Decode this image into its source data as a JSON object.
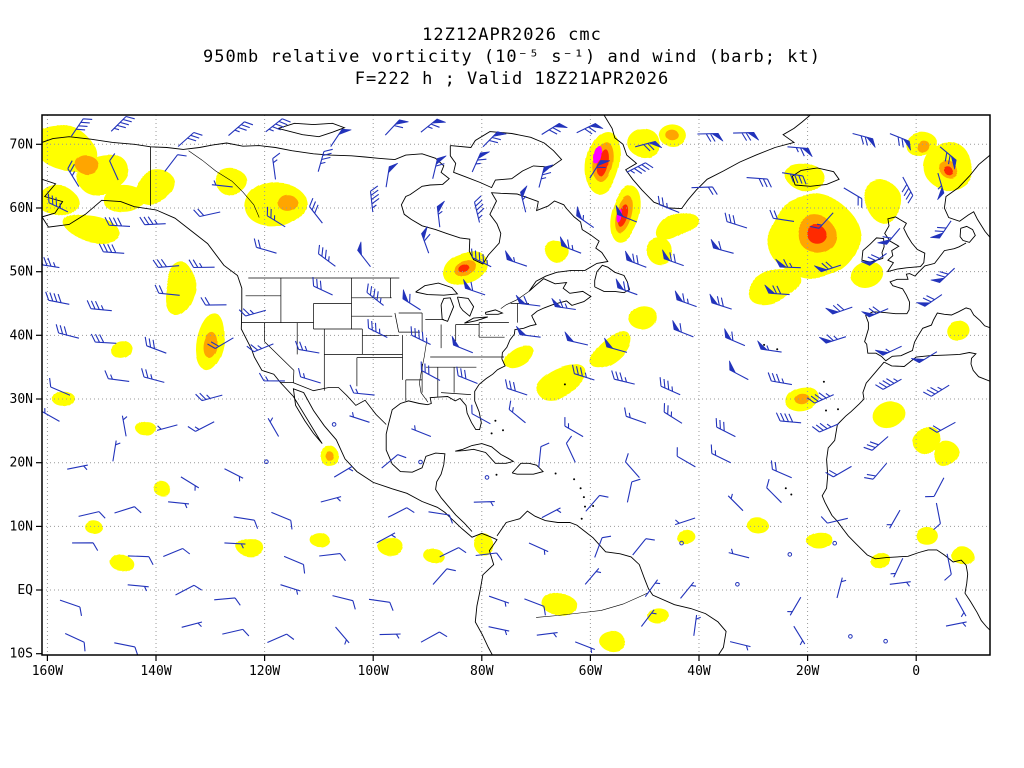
{
  "header": {
    "line1": "12Z12APR2026 cmc",
    "line2": "950mb relative vorticity (10⁻⁵ s⁻¹) and wind (barb; kt)",
    "line3": "F=222 h ; Valid 18Z21APR2026"
  },
  "chart_data": {
    "type": "heatmap",
    "title": "12Z12APR2026 cmc",
    "subtitle": "950mb relative vorticity (10⁻⁵ s⁻¹) and wind (barb; kt)",
    "forecast_line": "F=222 h ; Valid 18Z21APR2026",
    "model": "cmc",
    "run": "12Z12APR2026",
    "forecast_hour": "F=222 h",
    "valid": "18Z21APR2026",
    "level": "950mb",
    "variable": "relative vorticity (10⁻⁵ s⁻¹)",
    "wind_units": "kt",
    "lon_range": [
      -161,
      13.6
    ],
    "lat_range": [
      -10.2,
      74.6
    ],
    "grid_style": "dotted",
    "x_ticks": [
      {
        "label": "160W",
        "lon": -160
      },
      {
        "label": "140W",
        "lon": -140
      },
      {
        "label": "120W",
        "lon": -120
      },
      {
        "label": "100W",
        "lon": -100
      },
      {
        "label": "80W",
        "lon": -80
      },
      {
        "label": "60W",
        "lon": -60
      },
      {
        "label": "40W",
        "lon": -40
      },
      {
        "label": "20W",
        "lon": -20
      },
      {
        "label": "0",
        "lon": 0
      }
    ],
    "y_ticks": [
      {
        "label": "70N",
        "lat": 70
      },
      {
        "label": "60N",
        "lat": 60
      },
      {
        "label": "50N",
        "lat": 50
      },
      {
        "label": "40N",
        "lat": 40
      },
      {
        "label": "30N",
        "lat": 30
      },
      {
        "label": "20N",
        "lat": 20
      },
      {
        "label": "10N",
        "lat": 10
      },
      {
        "label": "EQ",
        "lat": 0
      },
      {
        "label": "10S",
        "lat": -10
      }
    ],
    "colors": {
      "barb": "#2233bb",
      "coast": "#000000",
      "grid": "#999999",
      "levels": [
        "#FFFF00",
        "#FFA500",
        "#FF2A00",
        "#FF00FF"
      ]
    },
    "cell_format": [
      "lon",
      "lat",
      "rx_deg",
      "ry_deg",
      "rotation_deg",
      "level"
    ],
    "vorticity_cells": [
      [
        -157,
        69.5,
        6,
        3.5,
        20,
        1
      ],
      [
        -150,
        65.5,
        5,
        3,
        -15,
        1
      ],
      [
        -158,
        61,
        3.5,
        2.5,
        0,
        1
      ],
      [
        -146,
        61.5,
        4,
        2.2,
        0,
        1
      ],
      [
        -152,
        57,
        5,
        2,
        10,
        1
      ],
      [
        -140,
        63,
        4,
        2.5,
        -20,
        1
      ],
      [
        -118,
        60.5,
        5.5,
        3.5,
        -10,
        1
      ],
      [
        -126,
        64,
        3,
        2,
        0,
        1
      ],
      [
        -136,
        47.5,
        2.5,
        4,
        15,
        1
      ],
      [
        -130,
        39,
        2.5,
        4.5,
        10,
        1
      ],
      [
        -146,
        37.5,
        2,
        1.5,
        0,
        1
      ],
      [
        -157,
        30,
        2,
        1.3,
        0,
        1
      ],
      [
        -142,
        25.5,
        1.8,
        1.2,
        0,
        1
      ],
      [
        -108,
        21,
        1.8,
        1.5,
        0,
        1
      ],
      [
        -123,
        7,
        2.5,
        1.4,
        0,
        1
      ],
      [
        -146,
        4,
        2,
        1.3,
        0,
        1
      ],
      [
        -151,
        9.5,
        1.6,
        1,
        0,
        1
      ],
      [
        -139,
        16,
        1.6,
        1,
        0,
        1
      ],
      [
        -110,
        8,
        1.8,
        1.1,
        0,
        1
      ],
      [
        -97,
        7,
        2.4,
        1.4,
        0,
        1
      ],
      [
        -89,
        5.5,
        1.8,
        1.1,
        0,
        1
      ],
      [
        -80,
        7.5,
        1.8,
        1.6,
        0,
        1
      ],
      [
        -66,
        -2,
        3,
        1.8,
        0,
        1
      ],
      [
        -56,
        -8,
        2.4,
        1.5,
        0,
        1
      ],
      [
        -47,
        -4.5,
        2,
        1.3,
        0,
        1
      ],
      [
        -83,
        50.5,
        4.5,
        2.8,
        -10,
        1
      ],
      [
        -66,
        53,
        2.2,
        1.5,
        0,
        1
      ],
      [
        -73,
        36.5,
        3,
        1.5,
        -30,
        1
      ],
      [
        -65,
        32.5,
        5,
        2,
        -25,
        1
      ],
      [
        -56,
        37.5,
        4.5,
        2,
        -40,
        1
      ],
      [
        -50,
        42.5,
        2.6,
        2,
        0,
        1
      ],
      [
        -47,
        53,
        2.5,
        2,
        0,
        1
      ],
      [
        -53.5,
        59,
        2.6,
        4.5,
        15,
        1
      ],
      [
        -57.5,
        67,
        3,
        5,
        10,
        1
      ],
      [
        -50.5,
        70.5,
        3,
        2.2,
        0,
        1
      ],
      [
        -45,
        71.5,
        2.5,
        1.7,
        0,
        1
      ],
      [
        -44,
        57,
        4,
        1.8,
        -35,
        1
      ],
      [
        -19,
        55.5,
        8.5,
        6.5,
        0,
        1
      ],
      [
        -26,
        47.5,
        5,
        2.2,
        -25,
        1
      ],
      [
        -9,
        49.5,
        3,
        2,
        -20,
        1
      ],
      [
        -6,
        61,
        3.5,
        3,
        0,
        1
      ],
      [
        -20,
        64.5,
        4,
        2,
        10,
        1
      ],
      [
        6,
        66.5,
        4.5,
        3.5,
        -20,
        1
      ],
      [
        1,
        70,
        3,
        2,
        0,
        1
      ],
      [
        -21,
        30,
        3.2,
        2,
        -10,
        1
      ],
      [
        -5,
        27.5,
        3,
        2,
        -20,
        1
      ],
      [
        2,
        23.5,
        3,
        2,
        0,
        1
      ],
      [
        6,
        21,
        2.5,
        2,
        0,
        1
      ],
      [
        8,
        40.5,
        2.2,
        1.6,
        0,
        1
      ],
      [
        -29,
        10,
        2,
        1.2,
        0,
        1
      ],
      [
        -18,
        8,
        2.4,
        1.4,
        0,
        1
      ],
      [
        -7,
        5,
        2,
        1.2,
        0,
        1
      ],
      [
        2,
        8.5,
        2,
        1.4,
        0,
        1
      ],
      [
        9,
        5,
        2,
        1.4,
        0,
        1
      ],
      [
        -42,
        8,
        1.8,
        1.1,
        0,
        1
      ],
      [
        -153,
        67,
        2.2,
        1.5,
        10,
        2
      ],
      [
        -116,
        61,
        1.8,
        1.3,
        0,
        2
      ],
      [
        -130,
        38.5,
        1.2,
        2,
        10,
        2
      ],
      [
        -83,
        50.5,
        2.2,
        1.4,
        -10,
        2
      ],
      [
        -53.8,
        59,
        1.4,
        3,
        15,
        2
      ],
      [
        -57.3,
        67,
        1.7,
        3.2,
        10,
        2
      ],
      [
        -18.5,
        56,
        3.5,
        2.8,
        0,
        2
      ],
      [
        -21,
        30,
        1.4,
        0.9,
        0,
        2
      ],
      [
        6,
        66,
        1.6,
        1.2,
        0,
        2
      ],
      [
        1.5,
        69.5,
        1.2,
        1,
        0,
        2
      ],
      [
        -45,
        71.5,
        1.2,
        0.8,
        0,
        2
      ],
      [
        -108,
        21,
        0.8,
        0.7,
        0,
        2
      ],
      [
        -83.3,
        50.5,
        1.1,
        0.7,
        0,
        3
      ],
      [
        -54,
        58.8,
        0.8,
        1.8,
        15,
        3
      ],
      [
        -57.3,
        66.8,
        0.9,
        2.2,
        10,
        3
      ],
      [
        -18.5,
        56,
        1.8,
        1.4,
        0,
        3
      ],
      [
        6,
        65.8,
        0.8,
        0.6,
        0,
        3
      ],
      [
        -58.3,
        68,
        0.7,
        1.5,
        10,
        4
      ],
      [
        -54.7,
        58.8,
        0.45,
        1.1,
        10,
        4
      ]
    ],
    "wind_field": {
      "barb_grid": {
        "lon_start": -156,
        "lon_end": 9,
        "lon_step": 9.5,
        "lat_start": -7,
        "lat_end": 71,
        "lat_step": 6.5
      },
      "zonal_profile": [
        [
          -10,
          -6
        ],
        [
          0,
          -9
        ],
        [
          15,
          -11
        ],
        [
          25,
          -4
        ],
        [
          35,
          10
        ],
        [
          45,
          20
        ],
        [
          55,
          22
        ],
        [
          65,
          14
        ],
        [
          75,
          8
        ]
      ],
      "vortices": [
        {
          "lon": -18.5,
          "lat": 56,
          "strength": 48,
          "radius": 13
        },
        {
          "lon": -57.5,
          "lat": 63,
          "strength": 40,
          "radius": 9
        },
        {
          "lon": -83,
          "lat": 50.5,
          "strength": 25,
          "radius": 7
        },
        {
          "lon": -151,
          "lat": 63,
          "strength": 25,
          "radius": 9
        },
        {
          "lon": 5.5,
          "lat": 66,
          "strength": 28,
          "radius": 7
        },
        {
          "lon": -130,
          "lat": 39,
          "strength": 15,
          "radius": 5
        },
        {
          "lon": -21,
          "lat": 30,
          "strength": 12,
          "radius": 4.5
        }
      ]
    }
  }
}
